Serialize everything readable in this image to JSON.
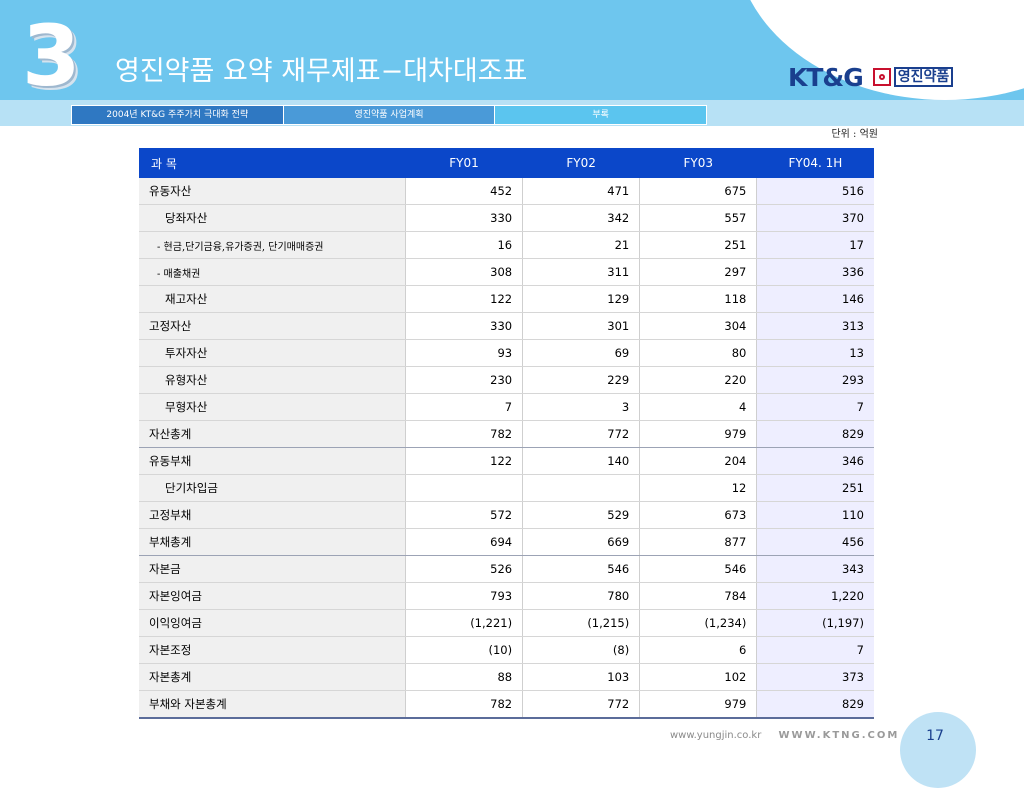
{
  "section_number": "3",
  "title": "영진약품 요약 재무제표−대차대조표",
  "logo": {
    "ktg": "KT&G",
    "company": "영진약품"
  },
  "tabs": [
    {
      "label": "2004년 KT&G 주주가치 극대화 전략"
    },
    {
      "label": "영진약품 사업계획"
    },
    {
      "label": "부록"
    }
  ],
  "unit": "단위 : 억원",
  "table": {
    "headers": [
      "과    목",
      "FY01",
      "FY02",
      "FY03",
      "FY04. 1H"
    ],
    "rows": [
      {
        "label": "유동자산",
        "values": [
          "452",
          "471",
          "675",
          "516"
        ]
      },
      {
        "label": "당좌자산",
        "values": [
          "330",
          "342",
          "557",
          "370"
        ]
      },
      {
        "label": "- 현금,단기금융,유가증권, 단기매매증권",
        "values": [
          "16",
          "21",
          "251",
          "17"
        ]
      },
      {
        "label": "- 매출채권",
        "values": [
          "308",
          "311",
          "297",
          "336"
        ]
      },
      {
        "label": "재고자산",
        "values": [
          "122",
          "129",
          "118",
          "146"
        ]
      },
      {
        "label": "고정자산",
        "values": [
          "330",
          "301",
          "304",
          "313"
        ]
      },
      {
        "label": "투자자산",
        "values": [
          "93",
          "69",
          "80",
          "13"
        ]
      },
      {
        "label": "유형자산",
        "values": [
          "230",
          "229",
          "220",
          "293"
        ]
      },
      {
        "label": "무형자산",
        "values": [
          "7",
          "3",
          "4",
          "7"
        ]
      },
      {
        "label": "자산총계",
        "values": [
          "782",
          "772",
          "979",
          "829"
        ]
      },
      {
        "label": "유동부채",
        "values": [
          "122",
          "140",
          "204",
          "346"
        ]
      },
      {
        "label": "단기차입금",
        "values": [
          "",
          "",
          "12",
          "251"
        ]
      },
      {
        "label": "고정부채",
        "values": [
          "572",
          "529",
          "673",
          "110"
        ]
      },
      {
        "label": "부채총계",
        "values": [
          "694",
          "669",
          "877",
          "456"
        ]
      },
      {
        "label": "자본금",
        "values": [
          "526",
          "546",
          "546",
          "343"
        ]
      },
      {
        "label": "자본잉여금",
        "values": [
          "793",
          "780",
          "784",
          "1,220"
        ]
      },
      {
        "label": "이익잉여금",
        "values": [
          "(1,221)",
          "(1,215)",
          "(1,234)",
          "(1,197)"
        ]
      },
      {
        "label": "자본조정",
        "values": [
          "(10)",
          "(8)",
          "6",
          "7"
        ]
      },
      {
        "label": "자본총계",
        "values": [
          "88",
          "103",
          "102",
          "373"
        ]
      },
      {
        "label": "부채와 자본총계",
        "values": [
          "782",
          "772",
          "979",
          "829"
        ]
      }
    ]
  },
  "footer": {
    "url1": "www.yungjin.co.kr",
    "url2": "WWW.KTNG.COM"
  },
  "page_number": "17"
}
